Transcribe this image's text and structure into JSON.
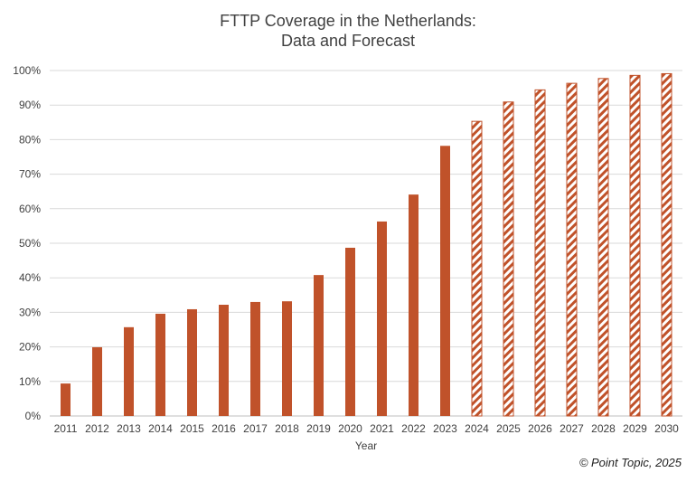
{
  "chart_data": {
    "type": "bar",
    "title": "FTTP Coverage in the Netherlands:",
    "subtitle": "Data and Forecast",
    "xlabel": "Year",
    "ylabel": "",
    "ylim": [
      0,
      100
    ],
    "yticks": [
      "0%",
      "10%",
      "20%",
      "30%",
      "40%",
      "50%",
      "60%",
      "70%",
      "80%",
      "90%",
      "100%"
    ],
    "grid": true,
    "categories": [
      "2011",
      "2012",
      "2013",
      "2014",
      "2015",
      "2016",
      "2017",
      "2018",
      "2019",
      "2020",
      "2021",
      "2022",
      "2023",
      "2024",
      "2025",
      "2026",
      "2027",
      "2028",
      "2029",
      "2030"
    ],
    "values": [
      9.4,
      19.9,
      25.7,
      29.6,
      30.9,
      32.2,
      33.0,
      33.2,
      40.8,
      48.7,
      56.3,
      64.1,
      78.2,
      85.3,
      90.9,
      94.4,
      96.3,
      97.7,
      98.6,
      99.1
    ],
    "forecast": [
      false,
      false,
      false,
      false,
      false,
      false,
      false,
      false,
      false,
      false,
      false,
      false,
      false,
      true,
      true,
      true,
      true,
      true,
      true,
      true
    ],
    "color": "#c0522a"
  },
  "credit": "© Point Topic, 2025"
}
